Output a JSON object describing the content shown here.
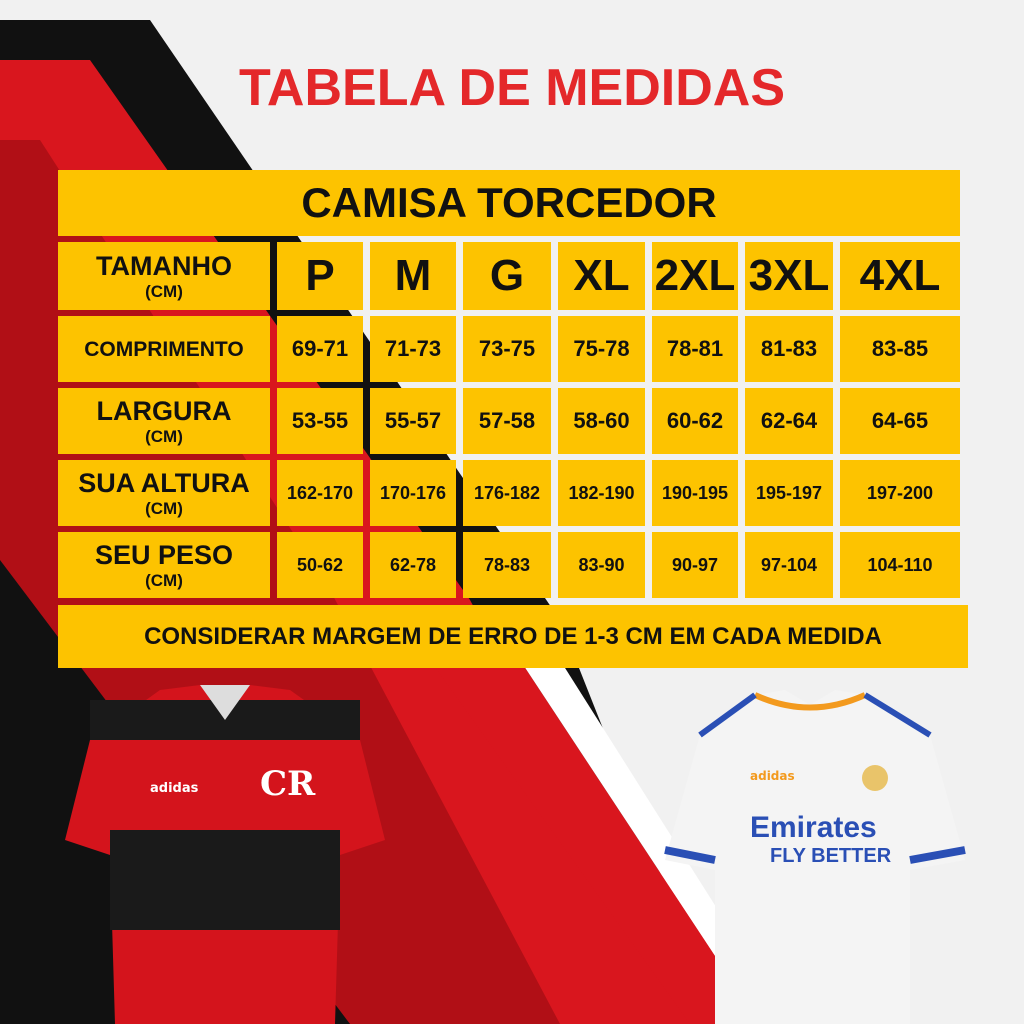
{
  "title": "TABELA DE MEDIDAS",
  "table": {
    "heading": "CAMISA TORCEDOR",
    "corner_label": "TAMANHO",
    "corner_unit": "(CM)",
    "sizes": [
      "P",
      "M",
      "G",
      "XL",
      "2XL",
      "3XL",
      "4XL"
    ],
    "rows": [
      {
        "label": "COMPRIMENTO",
        "unit": "",
        "values": [
          "69-71",
          "71-73",
          "73-75",
          "75-78",
          "78-81",
          "81-83",
          "83-85"
        ]
      },
      {
        "label": "LARGURA",
        "unit": "(CM)",
        "values": [
          "53-55",
          "55-57",
          "57-58",
          "58-60",
          "60-62",
          "62-64",
          "64-65"
        ]
      },
      {
        "label": "SUA ALTURA",
        "unit": "(CM)",
        "values": [
          "162-170",
          "170-176",
          "176-182",
          "182-190",
          "190-195",
          "195-197",
          "197-200"
        ]
      },
      {
        "label": "SEU PESO",
        "unit": "(CM)",
        "values": [
          "50-62",
          "62-78",
          "78-83",
          "83-90",
          "90-97",
          "97-104",
          "104-110"
        ]
      }
    ]
  },
  "footer": "CONSIDERAR MARGEM DE ERRO DE 1-3 CM EM CADA MEDIDA",
  "shirts": {
    "left": {
      "brand": "adidas",
      "colors": {
        "red": "#d4141c",
        "black": "#1a1a1a"
      }
    },
    "right": {
      "brand": "adidas",
      "sponsor": "Emirates",
      "sponsor_line2": "FLY BETTER",
      "colors": {
        "white": "#f4f4f4",
        "blue": "#2a4fb5",
        "orange": "#f39a1e"
      }
    }
  },
  "colors": {
    "title": "#e4282a",
    "table": "#fdc300",
    "accent_red": "#d9161e"
  }
}
